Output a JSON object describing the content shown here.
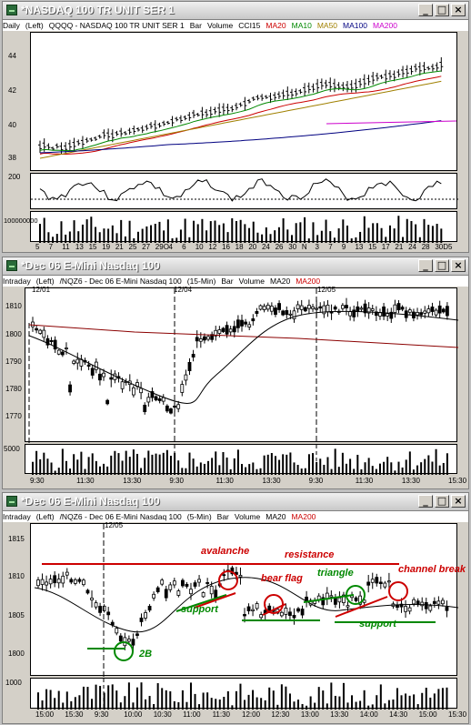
{
  "windows": [
    {
      "title": "*NASDAQ 100 TR UNIT SER 1",
      "info": [
        "Daily",
        "(Left)",
        "QQQQ - NASDAQ 100 TR UNIT SER 1",
        "Bar",
        "Volume",
        "CCI15",
        "MA20",
        "MA10",
        "MA50",
        "MA100",
        "MA200"
      ],
      "info_colors": [
        "#000",
        "#000",
        "#000",
        "#000",
        "#000",
        "#000",
        "#cc0000",
        "#008800",
        "#a08000",
        "#000080",
        "#cc00cc"
      ],
      "price_ticks": [
        "44",
        "42",
        "40",
        "38"
      ],
      "cci_ticks": [
        "200"
      ],
      "volume_ticks": [
        "100000000"
      ],
      "x_ticks": [
        "5",
        "7",
        "11",
        "13",
        "15",
        "19",
        "21",
        "25",
        "27",
        "29O",
        "4",
        "6",
        "10",
        "12",
        "16",
        "18",
        "20",
        "24",
        "26",
        "30",
        "N",
        "3",
        "7",
        "9",
        "13",
        "15",
        "17",
        "21",
        "24",
        "28",
        "30D",
        "5"
      ]
    },
    {
      "title": "*Dec 06  E-Mini Nasdaq 100",
      "info": [
        "Intraday",
        "(Left)",
        "/NQZ6 - Dec 06  E-Mini Nasdaq 100",
        "(15-Min)",
        "Bar",
        "Volume",
        "MA20",
        "MA200"
      ],
      "info_colors": [
        "#000",
        "#000",
        "#000",
        "#000",
        "#000",
        "#000",
        "#000",
        "#cc0000"
      ],
      "date_labels": [
        "12/01",
        "12/04",
        "12/05"
      ],
      "price_ticks": [
        "1810",
        "1800",
        "1790",
        "1780",
        "1770"
      ],
      "volume_ticks": [
        "5000"
      ],
      "x_ticks": [
        "9:30",
        "11:30",
        "13:30",
        "9:30",
        "11:30",
        "13:30",
        "9:30",
        "11:30",
        "13:30",
        "15:30"
      ]
    },
    {
      "title": "*Dec 06  E-Mini Nasdaq 100",
      "info": [
        "Intraday",
        "(Left)",
        "/NQZ6 - Dec 06  E-Mini Nasdaq 100",
        "(5-Min)",
        "Bar",
        "Volume",
        "MA20",
        "MA200"
      ],
      "info_colors": [
        "#000",
        "#000",
        "#000",
        "#000",
        "#000",
        "#000",
        "#000",
        "#cc0000"
      ],
      "date_labels": [
        "12/05"
      ],
      "price_ticks": [
        "1815",
        "1810",
        "1805",
        "1800"
      ],
      "volume_ticks": [
        "1000"
      ],
      "x_ticks": [
        "15:00",
        "15:30",
        "9:30",
        "10:00",
        "10:30",
        "11:00",
        "11:30",
        "12:00",
        "12:30",
        "13:00",
        "13:30",
        "14:00",
        "14:30",
        "15:00",
        "15:30"
      ],
      "annotations": {
        "avalanche": "avalanche",
        "resistance": "resistance",
        "bear_flag": "bear flag",
        "triangle": "triangle",
        "channel_break": "channel break",
        "support_1": "support",
        "support_2": "support",
        "two_b": "2B"
      }
    }
  ],
  "colors": {
    "ma20": "#cc0000",
    "ma10": "#008800",
    "ma50": "#a08000",
    "ma100": "#000080",
    "ma200": "#cc00cc",
    "annotation_red": "#cc0000",
    "annotation_green": "#008800"
  },
  "icons": {
    "minimize": "minimize-icon",
    "maximize": "maximize-icon",
    "close": "close-icon",
    "app": "chart-window-icon"
  },
  "glyphs": {
    "minimize": "_",
    "maximize": "□",
    "close": "×"
  }
}
